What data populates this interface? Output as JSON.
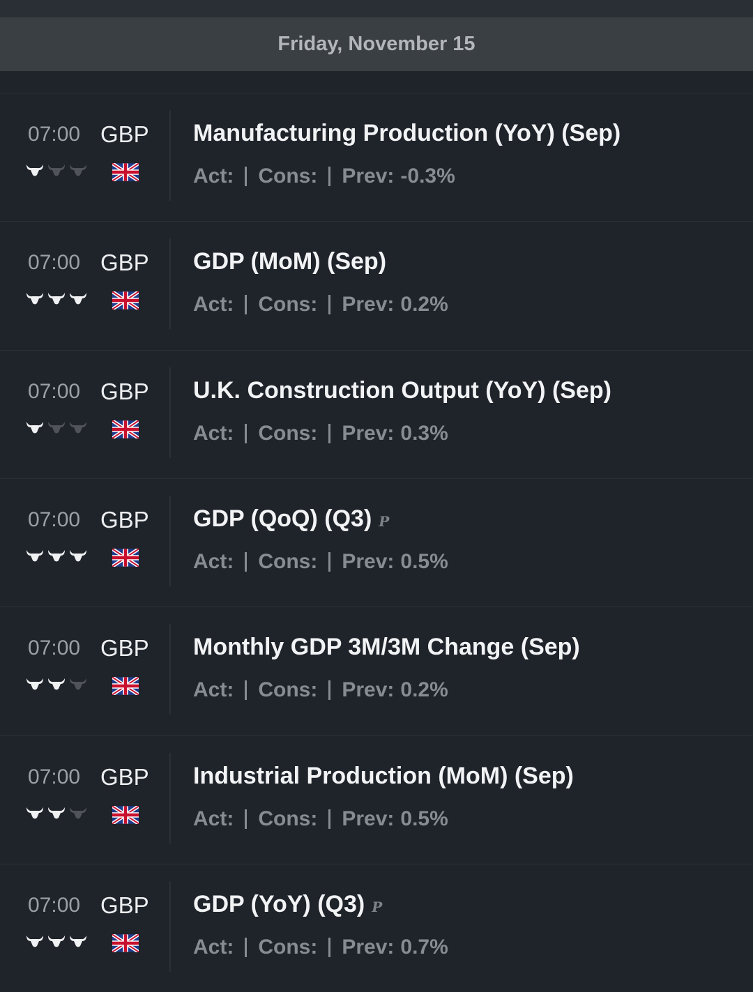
{
  "header": {
    "title": "Friday, November 15"
  },
  "labels": {
    "act": "Act:",
    "cons": "Cons:",
    "prev": "Prev:"
  },
  "rows": [
    {
      "time": "07:00",
      "currency": "GBP",
      "importance": 1,
      "title": "Manufacturing Production (YoY) (Sep)",
      "prev": "-0.3%"
    },
    {
      "time": "07:00",
      "currency": "GBP",
      "importance": 3,
      "title": "GDP (MoM) (Sep)",
      "prev": "0.2%"
    },
    {
      "time": "07:00",
      "currency": "GBP",
      "importance": 1,
      "title": "U.K. Construction Output (YoY) (Sep)",
      "prev": "0.3%"
    },
    {
      "time": "07:00",
      "currency": "GBP",
      "importance": 3,
      "title": "GDP (QoQ) (Q3)",
      "marker": "P",
      "prev": "0.5%"
    },
    {
      "time": "07:00",
      "currency": "GBP",
      "importance": 2,
      "title": "Monthly GDP 3M/3M Change (Sep)",
      "prev": "0.2%"
    },
    {
      "time": "07:00",
      "currency": "GBP",
      "importance": 2,
      "title": "Industrial Production (MoM) (Sep)",
      "prev": "0.5%"
    },
    {
      "time": "07:00",
      "currency": "GBP",
      "importance": 3,
      "title": "GDP (YoY) (Q3)",
      "marker": "P",
      "prev": "0.7%"
    }
  ]
}
